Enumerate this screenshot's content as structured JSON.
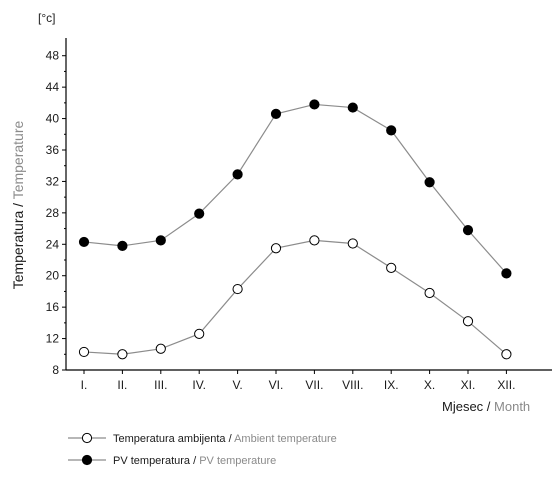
{
  "chart_data": {
    "type": "line",
    "unit_label": "[°c]",
    "ylabel": {
      "primary": "Temperatura",
      "separator": " / ",
      "secondary": "Temperature"
    },
    "xlabel": {
      "primary": "Mjesec",
      "separator": " / ",
      "secondary": "Month"
    },
    "categories": [
      "I.",
      "II.",
      "III.",
      "IV.",
      "V.",
      "VI.",
      "VII.",
      "VIII.",
      "IX.",
      "X.",
      "XI.",
      "XII."
    ],
    "ylim": [
      8,
      50
    ],
    "yticks": [
      8,
      12,
      16,
      20,
      24,
      28,
      32,
      36,
      40,
      44,
      48
    ],
    "grid": false,
    "legend_position": "bottom-left",
    "series": [
      {
        "name": {
          "primary": "Temperatura ambijenta",
          "separator": " / ",
          "secondary": "Ambient temperature"
        },
        "marker": "open-circle",
        "values": [
          10.3,
          10.0,
          10.7,
          12.6,
          18.3,
          23.5,
          24.5,
          24.1,
          21.0,
          17.8,
          14.2,
          10.0
        ]
      },
      {
        "name": {
          "primary": "PV temperatura",
          "separator": " / ",
          "secondary": "PV temperature"
        },
        "marker": "filled-circle",
        "values": [
          24.3,
          23.8,
          24.5,
          27.9,
          32.9,
          40.6,
          41.8,
          41.4,
          38.5,
          31.9,
          25.8,
          20.3
        ]
      }
    ],
    "colors": {
      "line": "#8c8c8c",
      "text_dark": "#1a1a1a",
      "text_light": "#8a8a8a",
      "marker": "#000000"
    }
  }
}
